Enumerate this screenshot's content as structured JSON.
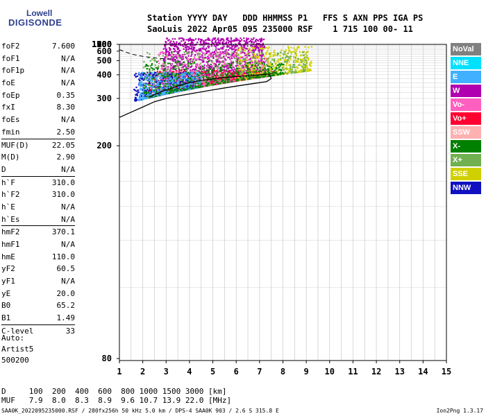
{
  "logo": {
    "line1": "Lowell",
    "line2": "DIGISONDE"
  },
  "header": {
    "row1": "Station YYYY DAY   DDD HHMMSS P1   FFS S AXN PPS IGA PS",
    "row2": "SaoLuis 2022 Apr05 095 235000 RSF    1 715 100 00- 11"
  },
  "params": {
    "group1": [
      {
        "name": "foF2",
        "value": "7.600"
      },
      {
        "name": "foF1",
        "value": "N/A"
      },
      {
        "name": "foF1p",
        "value": "N/A"
      },
      {
        "name": "foE",
        "value": "N/A"
      },
      {
        "name": "foEp",
        "value": "0.35"
      },
      {
        "name": "fxI",
        "value": "8.30"
      },
      {
        "name": "foEs",
        "value": "N/A"
      },
      {
        "name": "fmin",
        "value": "2.50"
      }
    ],
    "group2": [
      {
        "name": "MUF(D)",
        "value": "22.05"
      },
      {
        "name": "M(D)",
        "value": "2.90"
      },
      {
        "name": "D",
        "value": "N/A"
      }
    ],
    "group3": [
      {
        "name": "h`F",
        "value": "310.0"
      },
      {
        "name": "h`F2",
        "value": "310.0"
      },
      {
        "name": "h`E",
        "value": "N/A"
      },
      {
        "name": "h`Es",
        "value": "N/A"
      }
    ],
    "group4": [
      {
        "name": "hmF2",
        "value": "370.1"
      },
      {
        "name": "hmF1",
        "value": "N/A"
      },
      {
        "name": "hmE",
        "value": "110.0"
      },
      {
        "name": "yF2",
        "value": "60.5"
      },
      {
        "name": "yF1",
        "value": "N/A"
      },
      {
        "name": "yE",
        "value": "20.0"
      },
      {
        "name": "B0",
        "value": "65.2"
      },
      {
        "name": "B1",
        "value": "1.49"
      }
    ],
    "group5": [
      {
        "name": "C-level",
        "value": "33"
      }
    ]
  },
  "auto": {
    "line1": "Auto:",
    "line2": "Artist5",
    "line3": "500200"
  },
  "muf_table": {
    "row1": "D     100  200  400  600  800 1000 1500 3000 [km]",
    "row2": "MUF   7.9  8.0  8.3  8.9  9.6 10.7 13.9 22.0 [MHz]"
  },
  "footer": {
    "text": "SAA0K_2022095235000.RSF / 280fx256h 50 kHz 5.0 km / DPS-4 SAA0K 903 / 2.6 S 315.8 E",
    "version": "Ion2Png 1.3.17"
  },
  "legend": [
    {
      "label": "NoVal",
      "bg": "#808080",
      "fg": "#ffffff"
    },
    {
      "label": "NNE",
      "bg": "#00e0ff",
      "fg": "#ffffff"
    },
    {
      "label": "E",
      "bg": "#40b0ff",
      "fg": "#ffffff"
    },
    {
      "label": "W",
      "bg": "#b000b0",
      "fg": "#ffffff"
    },
    {
      "label": "Vo-",
      "bg": "#ff60c0",
      "fg": "#ffffff"
    },
    {
      "label": "Vo+",
      "bg": "#ff0030",
      "fg": "#ffffff"
    },
    {
      "label": "SSW",
      "bg": "#ffb0b0",
      "fg": "#ffffff"
    },
    {
      "label": "X-",
      "bg": "#008000",
      "fg": "#ffffff"
    },
    {
      "label": "X+",
      "bg": "#70b050",
      "fg": "#ffffff"
    },
    {
      "label": "SSE",
      "bg": "#d0d000",
      "fg": "#ffffff"
    },
    {
      "label": "NNW",
      "bg": "#1010c0",
      "fg": "#ffffff"
    }
  ],
  "chart_data": {
    "type": "scatter",
    "title": "",
    "xlabel": "",
    "ylabel": "",
    "xlim": [
      1,
      15
    ],
    "ylim": [
      80,
      1280
    ],
    "x_ticks": [
      1,
      2,
      3,
      4,
      5,
      6,
      7,
      8,
      9,
      10,
      11,
      12,
      13,
      14,
      15
    ],
    "y_ticks": [
      80,
      200,
      300,
      400,
      500,
      600,
      700,
      800,
      900,
      1000,
      1100,
      1280
    ],
    "grid": true,
    "y_scale": "reciprocal",
    "clusters": [
      {
        "name": "W",
        "color": "#b000b0",
        "x": [
          2.8,
          7.2
        ],
        "y": [
          280,
          850
        ]
      },
      {
        "name": "Vo+",
        "color": "#ff0030",
        "x": [
          2.2,
          7.6
        ],
        "y": [
          280,
          430
        ]
      },
      {
        "name": "Vo-",
        "color": "#ff60c0",
        "x": [
          2.6,
          7.4
        ],
        "y": [
          300,
          600
        ]
      },
      {
        "name": "NNW",
        "color": "#1010c0",
        "x": [
          1.6,
          4.2
        ],
        "y": [
          270,
          420
        ]
      },
      {
        "name": "SSE",
        "color": "#d0d000",
        "x": [
          6.0,
          9.2
        ],
        "y": [
          350,
          680
        ]
      },
      {
        "name": "X+",
        "color": "#70b050",
        "x": [
          2.0,
          9.0
        ],
        "y": [
          300,
          600
        ]
      },
      {
        "name": "E",
        "color": "#40b0ff",
        "x": [
          1.8,
          4.5
        ],
        "y": [
          280,
          420
        ]
      },
      {
        "name": "X-",
        "color": "#008000",
        "x": [
          2.0,
          8.0
        ],
        "y": [
          280,
          500
        ]
      }
    ],
    "profile_solid": {
      "x": [
        1.0,
        1.5,
        2.0,
        2.5,
        3.0,
        3.5,
        4.0,
        5.0,
        6.0,
        7.0,
        7.3,
        7.5,
        7.45,
        7.4
      ],
      "y": [
        250,
        262,
        275,
        290,
        300,
        308,
        315,
        330,
        345,
        360,
        365,
        380,
        395,
        398
      ]
    },
    "profile_dashed": {
      "x": [
        1.0,
        1.3,
        1.6,
        2.0,
        2.5,
        3.0,
        3.4
      ],
      "y": [
        620,
        585,
        560,
        540,
        525,
        515,
        510
      ]
    },
    "trace_black": {
      "x": [
        2.3,
        2.7,
        3.0,
        3.5,
        4.0,
        4.5,
        5.0,
        5.5,
        6.0,
        6.5,
        7.0,
        7.5
      ],
      "y": [
        305,
        320,
        330,
        345,
        360,
        370,
        378,
        385,
        390,
        395,
        400,
        405
      ]
    }
  }
}
